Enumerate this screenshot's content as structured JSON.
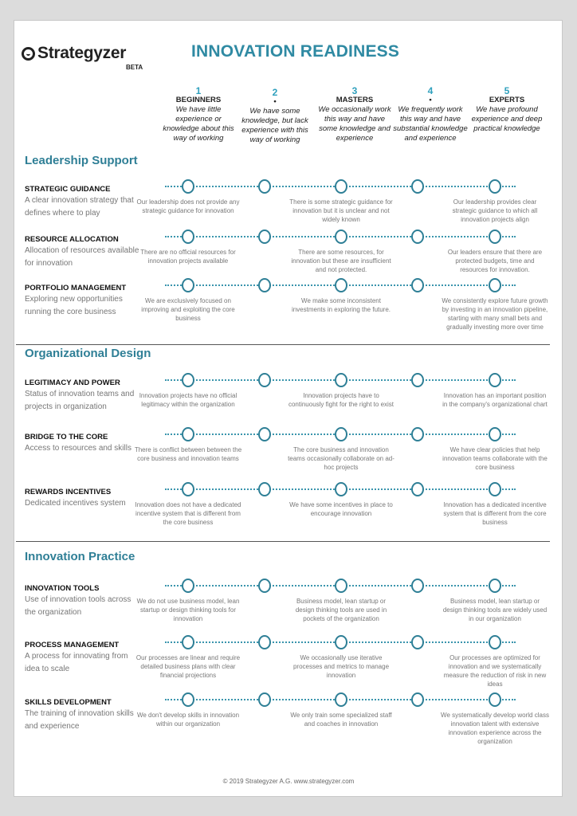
{
  "brand": {
    "name": "Strategyzer",
    "badge": "BETA"
  },
  "title": "INNOVATION READINESS",
  "levels": [
    {
      "num": "1",
      "name": "BEGINNERS",
      "desc": "We have little experience or knowledge about this way of working"
    },
    {
      "num": "2",
      "name": "•",
      "desc": "We have some knowledge, but lack experience with this way of working"
    },
    {
      "num": "3",
      "name": "MASTERS",
      "desc": "We  occasionally work this way and have some knowledge and experience"
    },
    {
      "num": "4",
      "name": "•",
      "desc": "We  frequently work this way and have substantial knowledge and experience"
    },
    {
      "num": "5",
      "name": "EXPERTS",
      "desc": "We have profound experience and deep practical knowledge"
    }
  ],
  "sections": [
    {
      "title": "Leadership Support",
      "rows": [
        {
          "title": "STRATEGIC GUIDANCE",
          "subtitle": "A clear innovation strategy that defines where to play",
          "descs": [
            "Our leadership does not provide  any strategic guidance for innovation",
            "There is some strategic guidance  for innovation but it is unclear and not widely known",
            "Our leadership provides clear strategic guidance to which all innovation projects align"
          ]
        },
        {
          "title": "RESOURCE ALLOCATION",
          "subtitle": "Allocation of resources available for innovation",
          "descs": [
            "There are no official resources for innovation projects available",
            "There are some resources, for innovation but these are insufficient and not protected.",
            "Our leaders ensure that there are protected budgets, time and resources for innovation."
          ]
        },
        {
          "title": "PORTFOLIO MANAGEMENT",
          "subtitle": "Exploring new opportunities running the core business",
          "descs": [
            "We are exclusively focused on improving and exploiting the core business",
            "We make some inconsistent investments in exploring the future.",
            "We consistently explore future growth by investing in an innovation pipeline, starting with many small bets and gradually investing more over time"
          ]
        }
      ]
    },
    {
      "title": "Organizational Design",
      "rows": [
        {
          "title": "LEGITIMACY AND POWER",
          "subtitle": "Status of innovation teams and projects in organization",
          "descs": [
            "Innovation  projects have no official legitimacy within the organization",
            "Innovation projects have to continuously fight for the right to exist",
            "Innovation has an important position in the company's organizational chart"
          ]
        },
        {
          "title": "BRIDGE TO THE CORE",
          "subtitle": "Access to resources and skills",
          "descs": [
            "There is conflict between between the core business and innovation teams",
            "The core business and innovation teams  occasionally collaborate on ad-hoc projects",
            "We have clear policies that help innovation teams collaborate with the core business"
          ]
        },
        {
          "title": "REWARDS INCENTIVES",
          "subtitle": "Dedicated incentives system",
          "descs": [
            "Innovation does not have a dedicated  incentive system that is different from the core business",
            "We have some incentives in place to encourage innovation",
            "Innovation has a dedicated incentive system that is different from the core business"
          ]
        }
      ]
    },
    {
      "title": "Innovation Practice",
      "rows": [
        {
          "title": "INNOVATION TOOLS",
          "subtitle": "Use of innovation tools across the organization",
          "descs": [
            "We do not use business model, lean startup or design thinking tools for innovation",
            "Business model, lean startup or design thinking tools are used in pockets of the organization",
            "Business model, lean startup or design thinking tools are widely used in our organization"
          ]
        },
        {
          "title": "PROCESS MANAGEMENT",
          "subtitle": "A process for innovating from idea to scale",
          "descs": [
            "Our processes are linear and require detailed business plans with clear financial projections",
            "We occasionally use iterative processes and metrics to manage innovation",
            "Our processes are optimized for innovation and we systematically measure the reduction of risk in new ideas"
          ]
        },
        {
          "title": "SKILLS DEVELOPMENT",
          "subtitle": "The training of innovation skills and experience",
          "descs": [
            "We don't develop skills in innovation within our organization",
            "We only train some specialized staff and coaches in innovation",
            "We systematically develop world class innovation talent with extensive innovation experience across the organization"
          ]
        }
      ]
    }
  ],
  "footer": "© 2019 Strategyzer A.G. www.strategyzer.com",
  "colors": {
    "accent": "#2f7f96",
    "title": "#2f8aa3",
    "circle": "#2e7f96"
  }
}
